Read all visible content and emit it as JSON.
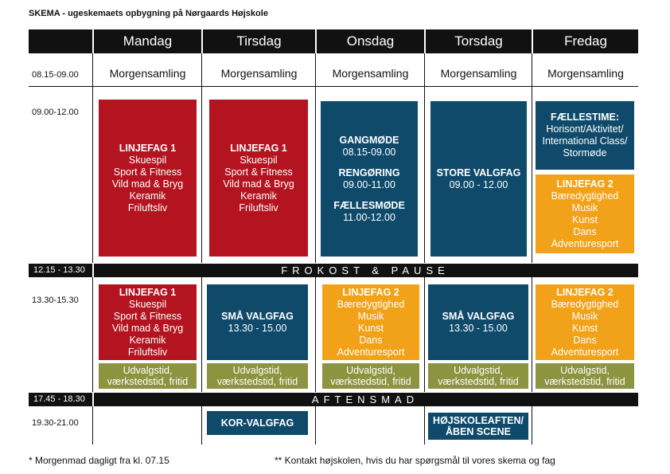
{
  "title": "SKEMA - ugeskemaets opbygning på Nørgaards Højskole",
  "days": [
    "Mandag",
    "Tirsdag",
    "Onsdag",
    "Torsdag",
    "Fredag"
  ],
  "times": {
    "t1": "08.15-09.00",
    "t2": "09.00-12.00",
    "t4": "13.30-15.30",
    "t6": "19.30-21.00"
  },
  "morning_label": "Morgensamling",
  "bands": {
    "lunch_time": "12.15 - 13.30",
    "lunch_label": "FROKOST & PAUSE",
    "dinner_time": "17.45 - 18.30",
    "dinner_label": "AFTENSMAD"
  },
  "linjefag1": {
    "title": "LINJEFAG 1",
    "items": [
      "Skuespil",
      "Sport & Fitness",
      "Vild mad & Bryg",
      "Keramik",
      "Friluftsliv"
    ]
  },
  "linjefag2": {
    "title": "LINJEFAG 2",
    "items": [
      "Bæredygtighed",
      "Musik",
      "Kunst",
      "Dans",
      "Adventuresport"
    ]
  },
  "onsdag_morning": {
    "gang_title": "GANGMØDE",
    "gang_time": "08.15-09.00",
    "reng_title": "RENGØRING",
    "reng_time": "09.00-11.00",
    "faelles_title": "FÆLLESMØDE",
    "faelles_time": "11.00-12.00"
  },
  "store_valgfag": {
    "title": "STORE VALGFAG",
    "time": "09.00 - 12.00"
  },
  "faellestime": {
    "title": "FÆLLESTIME:",
    "lines": [
      "Horisont/Aktivitet/",
      "International Class/",
      "Stormøde"
    ]
  },
  "smaa_valgfag": {
    "title": "SMÅ VALGFAG",
    "time": "13.30 - 15.00"
  },
  "udvalgstid": {
    "line1": "Udvalgstid,",
    "line2": "værkstedstid, fritid"
  },
  "kor_valgfag": "KOR-VALGFAG",
  "hojskoleaften": {
    "line1": "HØJSKOLEAFTEN/",
    "line2": "ÅBEN SCENE"
  },
  "footer": {
    "left": "* Morgenmad dagligt fra kl. 07.15",
    "right": "** Kontakt højskolen, hvis du har spørgsmål til vores skema og fag"
  },
  "colors": {
    "red": "#b3141f",
    "blue": "#0f4a6b",
    "orange": "#f2a219",
    "olive": "#8c9440",
    "black": "#111111"
  }
}
